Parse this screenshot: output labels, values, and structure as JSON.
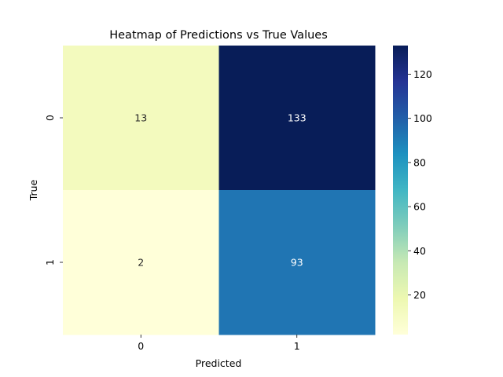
{
  "chart_data": {
    "type": "heatmap",
    "title": "Heatmap of Predictions vs True Values",
    "xlabel": "Predicted",
    "ylabel": "True",
    "x_categories": [
      "0",
      "1"
    ],
    "y_categories": [
      "0",
      "1"
    ],
    "values": [
      [
        13,
        133
      ],
      [
        2,
        93
      ]
    ],
    "annotated": true,
    "colormap": "YlGnBu",
    "colorbar": {
      "vmin": 2,
      "vmax": 133,
      "ticks": [
        20,
        40,
        60,
        80,
        100,
        120
      ]
    }
  },
  "colors": {
    "cmap_stops": [
      "#ffffd9",
      "#edf8b1",
      "#c7e9b4",
      "#7fcdbb",
      "#41b6c4",
      "#1d91c0",
      "#225ea8",
      "#253494",
      "#081d58"
    ],
    "text_on_dark": "#ffffff",
    "text_on_light": "#262626",
    "axis_color": "#000000"
  }
}
